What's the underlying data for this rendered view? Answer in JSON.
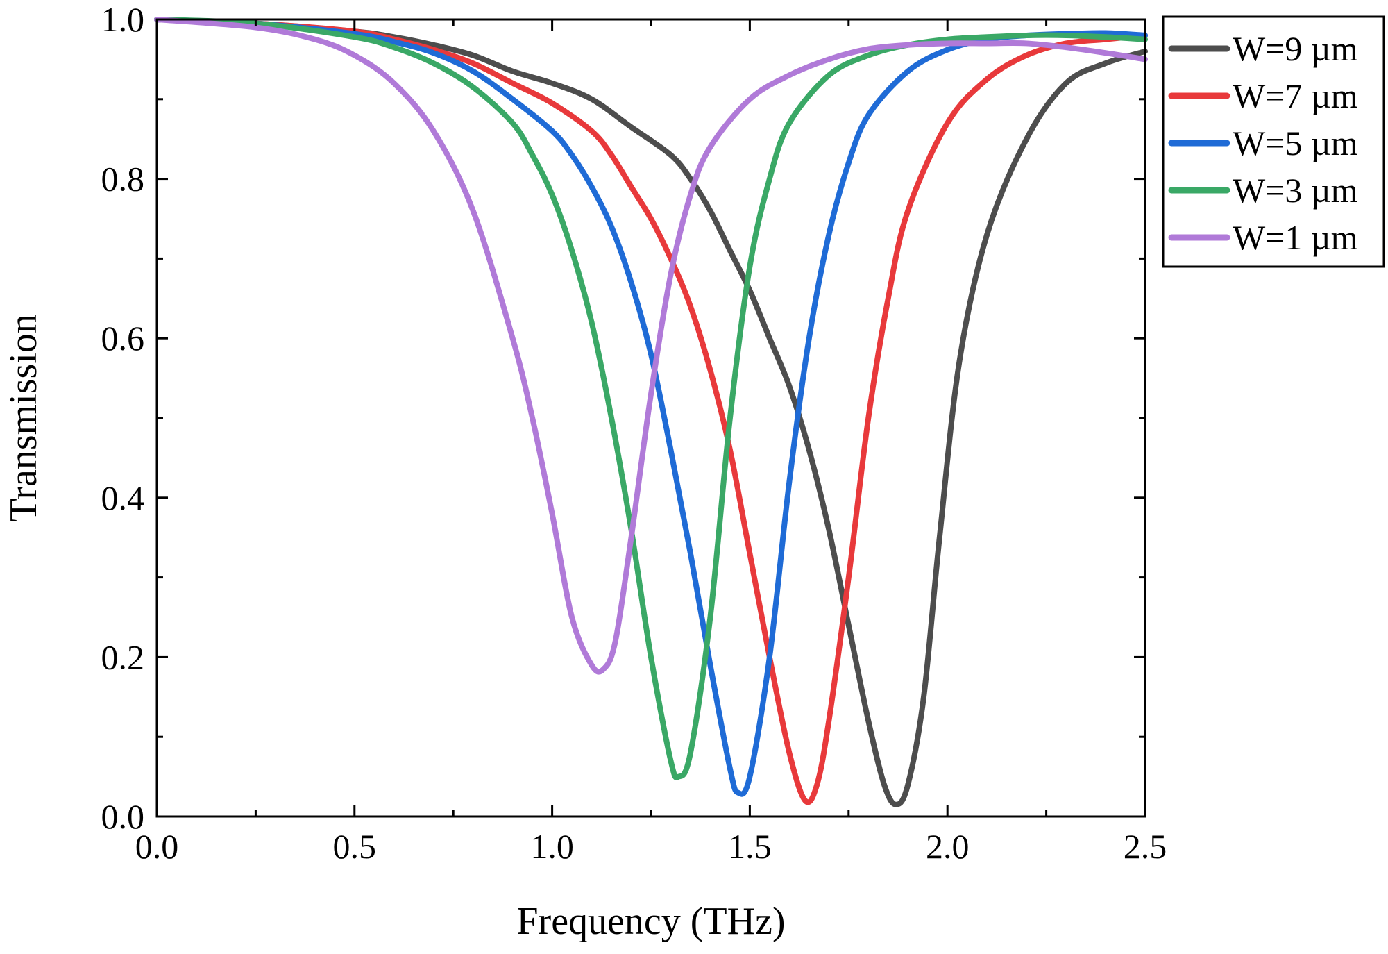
{
  "chart_data": {
    "type": "line",
    "title": "",
    "xlabel": "Frequency (THz)",
    "ylabel": "Transmission",
    "xlim": [
      0,
      2.5
    ],
    "ylim": [
      0,
      1.0
    ],
    "grid": false,
    "legend_position": "outside-top-right",
    "x_ticks": [
      "0.0",
      "0.5",
      "1.0",
      "1.5",
      "2.0",
      "2.5"
    ],
    "y_ticks": [
      "0.0",
      "0.2",
      "0.4",
      "0.6",
      "0.8",
      "1.0"
    ],
    "series": [
      {
        "name": "W=9 µm",
        "color": "#4d4d4d",
        "points": [
          [
            0,
            1.0
          ],
          [
            0.25,
            0.995
          ],
          [
            0.5,
            0.985
          ],
          [
            0.6,
            0.978
          ],
          [
            0.7,
            0.968
          ],
          [
            0.8,
            0.955
          ],
          [
            0.9,
            0.935
          ],
          [
            1.0,
            0.92
          ],
          [
            1.1,
            0.9
          ],
          [
            1.2,
            0.865
          ],
          [
            1.3,
            0.83
          ],
          [
            1.35,
            0.8
          ],
          [
            1.4,
            0.76
          ],
          [
            1.45,
            0.71
          ],
          [
            1.5,
            0.66
          ],
          [
            1.55,
            0.6
          ],
          [
            1.6,
            0.54
          ],
          [
            1.65,
            0.46
          ],
          [
            1.7,
            0.36
          ],
          [
            1.75,
            0.24
          ],
          [
            1.8,
            0.12
          ],
          [
            1.84,
            0.04
          ],
          [
            1.87,
            0.015
          ],
          [
            1.9,
            0.04
          ],
          [
            1.94,
            0.15
          ],
          [
            1.98,
            0.35
          ],
          [
            2.03,
            0.57
          ],
          [
            2.1,
            0.73
          ],
          [
            2.2,
            0.85
          ],
          [
            2.3,
            0.92
          ],
          [
            2.4,
            0.945
          ],
          [
            2.5,
            0.96
          ]
        ]
      },
      {
        "name": "W=7 µm",
        "color": "#e8393b",
        "points": [
          [
            0,
            1.0
          ],
          [
            0.25,
            0.995
          ],
          [
            0.5,
            0.985
          ],
          [
            0.6,
            0.975
          ],
          [
            0.7,
            0.962
          ],
          [
            0.8,
            0.945
          ],
          [
            0.9,
            0.92
          ],
          [
            1.0,
            0.895
          ],
          [
            1.1,
            0.86
          ],
          [
            1.15,
            0.83
          ],
          [
            1.2,
            0.79
          ],
          [
            1.25,
            0.75
          ],
          [
            1.3,
            0.7
          ],
          [
            1.35,
            0.64
          ],
          [
            1.4,
            0.56
          ],
          [
            1.45,
            0.46
          ],
          [
            1.5,
            0.33
          ],
          [
            1.55,
            0.2
          ],
          [
            1.6,
            0.08
          ],
          [
            1.64,
            0.02
          ],
          [
            1.67,
            0.04
          ],
          [
            1.7,
            0.12
          ],
          [
            1.75,
            0.3
          ],
          [
            1.8,
            0.5
          ],
          [
            1.85,
            0.65
          ],
          [
            1.9,
            0.76
          ],
          [
            2.0,
            0.87
          ],
          [
            2.1,
            0.925
          ],
          [
            2.2,
            0.955
          ],
          [
            2.3,
            0.97
          ],
          [
            2.4,
            0.975
          ],
          [
            2.5,
            0.98
          ]
        ]
      },
      {
        "name": "W=5 µm",
        "color": "#1f6bd6",
        "points": [
          [
            0,
            1.0
          ],
          [
            0.25,
            0.995
          ],
          [
            0.5,
            0.982
          ],
          [
            0.6,
            0.972
          ],
          [
            0.7,
            0.958
          ],
          [
            0.8,
            0.935
          ],
          [
            0.9,
            0.9
          ],
          [
            1.0,
            0.86
          ],
          [
            1.05,
            0.83
          ],
          [
            1.1,
            0.79
          ],
          [
            1.15,
            0.74
          ],
          [
            1.2,
            0.67
          ],
          [
            1.25,
            0.58
          ],
          [
            1.3,
            0.46
          ],
          [
            1.35,
            0.33
          ],
          [
            1.4,
            0.19
          ],
          [
            1.45,
            0.06
          ],
          [
            1.47,
            0.03
          ],
          [
            1.5,
            0.05
          ],
          [
            1.55,
            0.2
          ],
          [
            1.6,
            0.42
          ],
          [
            1.65,
            0.6
          ],
          [
            1.7,
            0.73
          ],
          [
            1.75,
            0.82
          ],
          [
            1.8,
            0.88
          ],
          [
            1.9,
            0.935
          ],
          [
            2.0,
            0.962
          ],
          [
            2.1,
            0.975
          ],
          [
            2.2,
            0.98
          ],
          [
            2.3,
            0.982
          ],
          [
            2.4,
            0.983
          ],
          [
            2.5,
            0.98
          ]
        ]
      },
      {
        "name": "W=3 µm",
        "color": "#3aa866",
        "points": [
          [
            0,
            1.0
          ],
          [
            0.25,
            0.995
          ],
          [
            0.5,
            0.978
          ],
          [
            0.6,
            0.965
          ],
          [
            0.7,
            0.945
          ],
          [
            0.8,
            0.915
          ],
          [
            0.9,
            0.87
          ],
          [
            0.95,
            0.83
          ],
          [
            1.0,
            0.78
          ],
          [
            1.05,
            0.71
          ],
          [
            1.1,
            0.62
          ],
          [
            1.15,
            0.5
          ],
          [
            1.2,
            0.36
          ],
          [
            1.25,
            0.2
          ],
          [
            1.3,
            0.07
          ],
          [
            1.32,
            0.05
          ],
          [
            1.35,
            0.08
          ],
          [
            1.4,
            0.25
          ],
          [
            1.45,
            0.5
          ],
          [
            1.5,
            0.69
          ],
          [
            1.55,
            0.8
          ],
          [
            1.6,
            0.87
          ],
          [
            1.7,
            0.93
          ],
          [
            1.8,
            0.955
          ],
          [
            1.9,
            0.968
          ],
          [
            2.0,
            0.975
          ],
          [
            2.1,
            0.978
          ],
          [
            2.2,
            0.98
          ],
          [
            2.3,
            0.98
          ],
          [
            2.4,
            0.978
          ],
          [
            2.5,
            0.975
          ]
        ]
      },
      {
        "name": "W=1 µm",
        "color": "#b07ad8",
        "points": [
          [
            0,
            1.0
          ],
          [
            0.25,
            0.99
          ],
          [
            0.4,
            0.975
          ],
          [
            0.5,
            0.955
          ],
          [
            0.6,
            0.92
          ],
          [
            0.7,
            0.86
          ],
          [
            0.8,
            0.76
          ],
          [
            0.9,
            0.6
          ],
          [
            0.95,
            0.5
          ],
          [
            1.0,
            0.38
          ],
          [
            1.05,
            0.25
          ],
          [
            1.1,
            0.19
          ],
          [
            1.13,
            0.185
          ],
          [
            1.16,
            0.22
          ],
          [
            1.2,
            0.35
          ],
          [
            1.25,
            0.53
          ],
          [
            1.3,
            0.68
          ],
          [
            1.35,
            0.78
          ],
          [
            1.4,
            0.84
          ],
          [
            1.5,
            0.9
          ],
          [
            1.6,
            0.93
          ],
          [
            1.7,
            0.95
          ],
          [
            1.8,
            0.963
          ],
          [
            1.9,
            0.968
          ],
          [
            2.0,
            0.97
          ],
          [
            2.1,
            0.97
          ],
          [
            2.2,
            0.97
          ],
          [
            2.3,
            0.965
          ],
          [
            2.4,
            0.958
          ],
          [
            2.5,
            0.95
          ]
        ]
      }
    ]
  }
}
